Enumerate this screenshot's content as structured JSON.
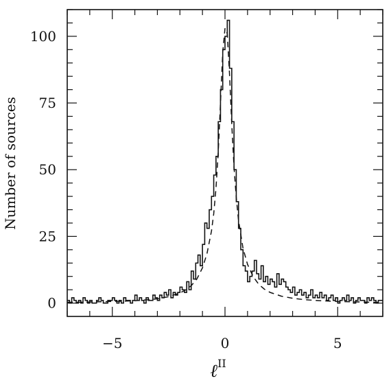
{
  "chart_data": {
    "type": "line",
    "title": "",
    "xlabel": "ℓ",
    "xlabel_superscript": "II",
    "ylabel": "Number of sources",
    "xlim": [
      -7,
      7
    ],
    "ylim": [
      -5,
      110
    ],
    "xticks": [
      -5,
      0,
      5
    ],
    "xtick_labels": [
      "−5",
      "0",
      "5"
    ],
    "yticks": [
      0,
      25,
      50,
      75,
      100
    ],
    "ytick_labels": [
      "0",
      "25",
      "50",
      "75",
      "100"
    ],
    "grid": false,
    "legend": "none",
    "series": [
      {
        "style": "histogram-step-solid",
        "x": [
          -7.0,
          -6.9,
          -6.8,
          -6.7,
          -6.6,
          -6.5,
          -6.4,
          -6.3,
          -6.2,
          -6.1,
          -6.0,
          -5.9,
          -5.8,
          -5.7,
          -5.6,
          -5.5,
          -5.4,
          -5.3,
          -5.2,
          -5.1,
          -5.0,
          -4.9,
          -4.8,
          -4.7,
          -4.6,
          -4.5,
          -4.4,
          -4.3,
          -4.2,
          -4.1,
          -4.0,
          -3.9,
          -3.8,
          -3.7,
          -3.6,
          -3.5,
          -3.4,
          -3.3,
          -3.2,
          -3.1,
          -3.0,
          -2.9,
          -2.8,
          -2.7,
          -2.6,
          -2.5,
          -2.4,
          -2.3,
          -2.2,
          -2.1,
          -2.0,
          -1.9,
          -1.8,
          -1.7,
          -1.6,
          -1.5,
          -1.4,
          -1.3,
          -1.2,
          -1.1,
          -1.0,
          -0.9,
          -0.8,
          -0.7,
          -0.6,
          -0.5,
          -0.4,
          -0.3,
          -0.2,
          -0.1,
          0.0,
          0.1,
          0.2,
          0.3,
          0.4,
          0.5,
          0.6,
          0.7,
          0.8,
          0.9,
          1.0,
          1.1,
          1.2,
          1.3,
          1.4,
          1.5,
          1.6,
          1.7,
          1.8,
          1.9,
          2.0,
          2.1,
          2.2,
          2.3,
          2.4,
          2.5,
          2.6,
          2.7,
          2.8,
          2.9,
          3.0,
          3.1,
          3.2,
          3.3,
          3.4,
          3.5,
          3.6,
          3.7,
          3.8,
          3.9,
          4.0,
          4.1,
          4.2,
          4.3,
          4.4,
          4.5,
          4.6,
          4.7,
          4.8,
          4.9,
          5.0,
          5.1,
          5.2,
          5.3,
          5.4,
          5.5,
          5.6,
          5.7,
          5.8,
          5.9,
          6.0,
          6.1,
          6.2,
          6.3,
          6.4,
          6.5,
          6.6,
          6.7,
          6.8,
          6.9
        ],
        "values": [
          1,
          0,
          2,
          1,
          0,
          1,
          0,
          2,
          1,
          0,
          1,
          0,
          0,
          1,
          2,
          1,
          0,
          0,
          1,
          1,
          2,
          1,
          0,
          1,
          0,
          2,
          1,
          1,
          0,
          1,
          3,
          1,
          2,
          1,
          0,
          2,
          1,
          1,
          3,
          2,
          1,
          3,
          2,
          4,
          3,
          5,
          2,
          4,
          3,
          4,
          6,
          5,
          4,
          8,
          5,
          12,
          9,
          15,
          18,
          14,
          22,
          30,
          28,
          35,
          40,
          48,
          55,
          68,
          80,
          95,
          100,
          106,
          88,
          68,
          50,
          38,
          28,
          20,
          14,
          12,
          8,
          10,
          12,
          16,
          11,
          9,
          14,
          8,
          10,
          7,
          9,
          8,
          6,
          11,
          7,
          9,
          8,
          6,
          5,
          4,
          6,
          3,
          4,
          5,
          3,
          4,
          2,
          3,
          5,
          2,
          3,
          2,
          4,
          2,
          3,
          1,
          2,
          3,
          1,
          2,
          0,
          1,
          2,
          1,
          3,
          1,
          2,
          0,
          1,
          2,
          1,
          1,
          0,
          2,
          1,
          2,
          1,
          0,
          1,
          1
        ]
      },
      {
        "style": "dashed-lorentzian-fit",
        "x": [
          -7.0,
          -6.5,
          -6.0,
          -5.5,
          -5.0,
          -4.5,
          -4.0,
          -3.5,
          -3.0,
          -2.5,
          -2.0,
          -1.75,
          -1.5,
          -1.25,
          -1.0,
          -0.8,
          -0.6,
          -0.5,
          -0.4,
          -0.3,
          -0.2,
          -0.1,
          0.0,
          0.1,
          0.2,
          0.3,
          0.4,
          0.5,
          0.6,
          0.8,
          1.0,
          1.25,
          1.5,
          1.75,
          2.0,
          2.5,
          3.0,
          3.5,
          4.0,
          4.5,
          5.0,
          5.5,
          6.0,
          6.5,
          7.0
        ],
        "values": [
          0.3,
          0.3,
          0.4,
          0.5,
          0.6,
          0.7,
          0.9,
          1.2,
          1.6,
          2.4,
          3.8,
          4.9,
          6.5,
          9.0,
          13.2,
          18.5,
          27.0,
          33.5,
          43.0,
          56.5,
          75.0,
          94.0,
          103.0,
          101.0,
          86.0,
          67.0,
          51.0,
          39.5,
          31.0,
          20.5,
          14.5,
          9.9,
          7.0,
          5.2,
          4.0,
          2.6,
          1.8,
          1.3,
          1.0,
          0.8,
          0.6,
          0.5,
          0.4,
          0.3,
          0.3
        ]
      }
    ]
  }
}
